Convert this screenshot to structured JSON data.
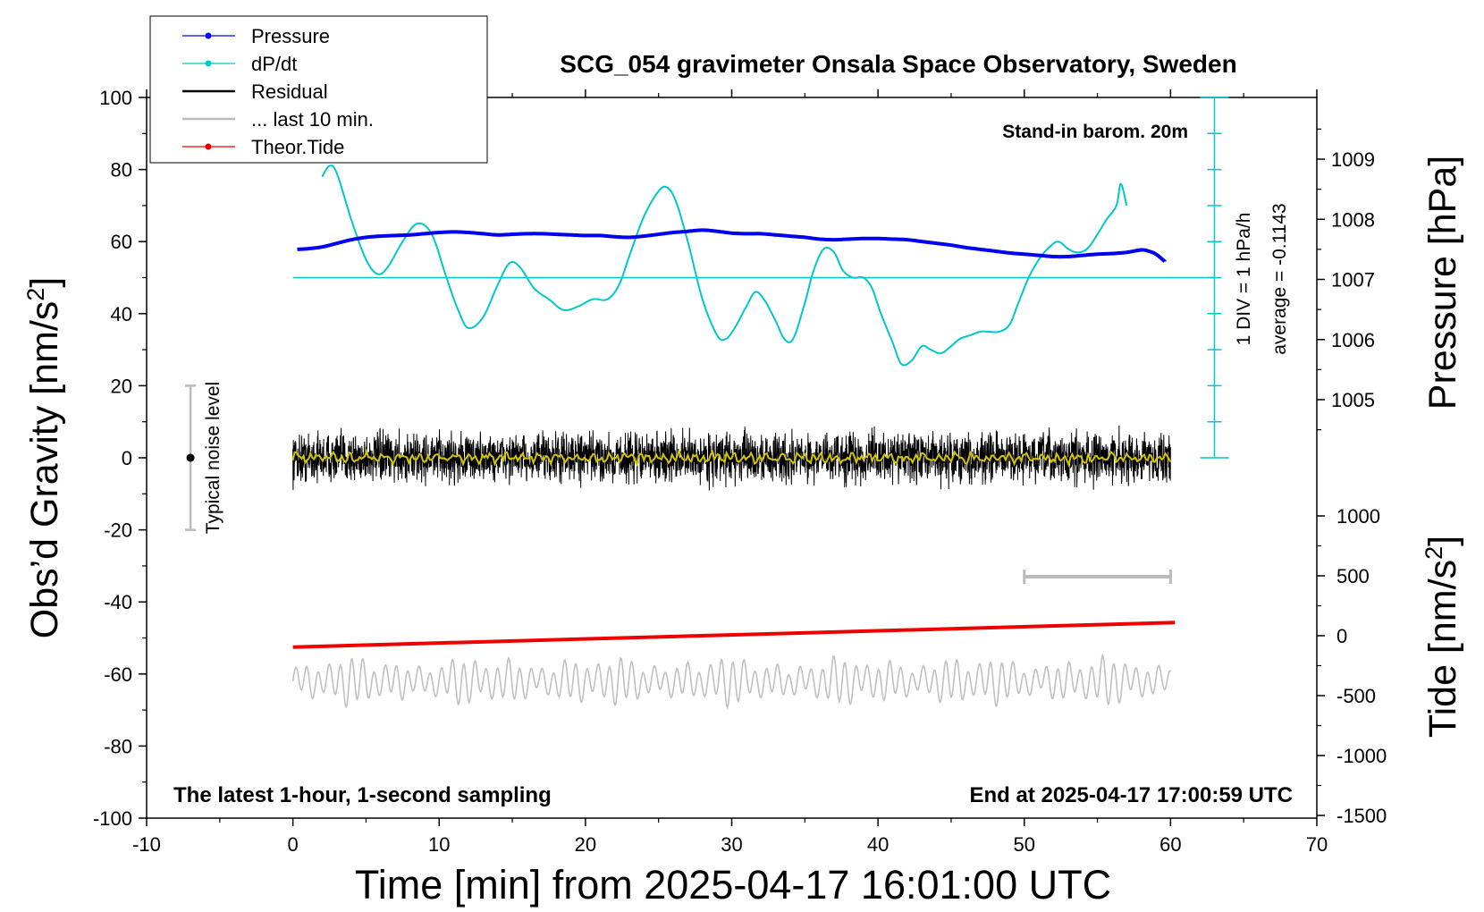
{
  "chart_data": {
    "type": "line",
    "title": "SCG_054 gravimeter Onsala Space Observatory, Sweden",
    "subtitle_right": "Stand-in barom. 20m",
    "footer_left": "The latest 1-hour, 1-second sampling",
    "footer_right": "End at 2025-04-17 17:00:59 UTC",
    "xlabel": "Time [min] from 2025-04-17 16:01:00 UTC",
    "ylabel_left": "Obs'd Gravity [nm/s²]",
    "ylabel_pressure": "Pressure [hPa]",
    "ylabel_tide_base": "Tide [nm/s",
    "ylabel_tide_sup": "2",
    "ylabel_tide_end": "]",
    "ylabel_left_base": "Obs’d Gravity [nm/s",
    "ylabel_left_sup": "2",
    "ylabel_left_end": "]",
    "xlim": [
      -10,
      70
    ],
    "ylim": [
      -100,
      100
    ],
    "xticks": [
      "-10",
      "0",
      "10",
      "20",
      "30",
      "40",
      "50",
      "60",
      "70"
    ],
    "yticks": [
      "100",
      "80",
      "60",
      "40",
      "20",
      "0",
      "-20",
      "-40",
      "-60",
      "-80",
      "-100"
    ],
    "pressure_axis": {
      "ticks": [
        "1009",
        "1008",
        "1007",
        "1006",
        "1005"
      ],
      "values": [
        1009,
        1008,
        1007,
        1006,
        1005
      ]
    },
    "tide_axis": {
      "ticks": [
        "1000",
        "500",
        "0",
        "-500",
        "-1000",
        "-1500"
      ],
      "values": [
        1000,
        500,
        0,
        -500,
        -1000,
        -1500
      ]
    },
    "dpdt_scale_label": "1 DIV = 1 hPa/h",
    "dpdt_average_label": "average = -0.1143",
    "noise_label": "Typical noise level",
    "legend": [
      {
        "label": "Pressure",
        "color": "#0000ee",
        "marker": true
      },
      {
        "label": "dP/dt",
        "color": "#00c8c8",
        "marker": true
      },
      {
        "label": "Residual",
        "color": "#000000",
        "marker": false
      },
      {
        "label": "... last 10 min.",
        "color": "#bbbbbb",
        "marker": false
      },
      {
        "label": "Theor.Tide",
        "color": "#ee0000",
        "marker": true
      }
    ],
    "series": [
      {
        "name": "Pressure",
        "axis": "pressure_hPa",
        "x": [
          0.3,
          1,
          2,
          3,
          4,
          5,
          6,
          7,
          8,
          9,
          10,
          11,
          12,
          13,
          14,
          15,
          16,
          17,
          18,
          19,
          20,
          21,
          22,
          23,
          24,
          25,
          26,
          27,
          28,
          29,
          30,
          31,
          32,
          33,
          34,
          35,
          36,
          37,
          38,
          39,
          40,
          41,
          42,
          43,
          44,
          45,
          46,
          47,
          48,
          49,
          50,
          51,
          52,
          53,
          54,
          55,
          56,
          57,
          58,
          58.5,
          59,
          59.6
        ],
        "values": [
          1007.5,
          1007.51,
          1007.54,
          1007.6,
          1007.66,
          1007.7,
          1007.72,
          1007.73,
          1007.74,
          1007.76,
          1007.78,
          1007.79,
          1007.78,
          1007.76,
          1007.74,
          1007.75,
          1007.76,
          1007.76,
          1007.75,
          1007.74,
          1007.73,
          1007.73,
          1007.71,
          1007.7,
          1007.72,
          1007.75,
          1007.78,
          1007.8,
          1007.82,
          1007.8,
          1007.77,
          1007.76,
          1007.76,
          1007.74,
          1007.72,
          1007.7,
          1007.67,
          1007.66,
          1007.67,
          1007.68,
          1007.68,
          1007.67,
          1007.66,
          1007.63,
          1007.6,
          1007.57,
          1007.53,
          1007.5,
          1007.47,
          1007.44,
          1007.42,
          1007.4,
          1007.38,
          1007.38,
          1007.4,
          1007.42,
          1007.43,
          1007.45,
          1007.49,
          1007.47,
          1007.42,
          1007.3
        ]
      },
      {
        "name": "dP/dt",
        "axis": "gravity_scale",
        "x": [
          2,
          2.5,
          3,
          4,
          5,
          5.8,
          6.5,
          7.5,
          8.5,
          9.5,
          10.5,
          11.3,
          12,
          13,
          14,
          14.8,
          15.5,
          16.5,
          17.5,
          18.5,
          19.5,
          20.5,
          21.5,
          22.3,
          23,
          24,
          25,
          25.6,
          26.2,
          27,
          28,
          29,
          29.6,
          30.2,
          31,
          31.6,
          32.2,
          33,
          33.6,
          34.2,
          35,
          35.6,
          36.3,
          37,
          37.6,
          38.3,
          39,
          39.6,
          40.2,
          41,
          41.6,
          42.3,
          43,
          43.6,
          44.3,
          45,
          45.6,
          46.3,
          47,
          47.6,
          48.3,
          49,
          49.6,
          50.3,
          51,
          51.6,
          52.3,
          53,
          53.6,
          54.3,
          55,
          55.6,
          56.3,
          56.6,
          57
        ],
        "values": [
          78,
          81,
          79,
          66,
          55,
          51,
          53,
          60,
          65,
          62,
          50,
          41,
          36,
          39,
          48,
          54,
          53,
          47,
          44,
          41,
          42,
          44,
          44,
          48,
          56,
          67,
          74,
          75,
          71,
          60,
          44,
          34,
          33,
          36,
          42,
          46,
          44,
          38,
          33,
          33,
          43,
          52,
          58,
          57,
          52,
          50,
          50,
          47,
          40,
          32,
          26,
          27,
          31,
          30,
          29,
          31,
          33,
          34,
          35,
          35,
          35,
          37,
          43,
          50,
          55,
          58,
          60,
          58,
          57,
          58,
          62,
          66,
          70,
          76,
          70
        ]
      },
      {
        "name": "Residual",
        "axis": "gravity",
        "x_range": [
          0,
          60
        ],
        "mean": 0,
        "typical_amplitude": 4,
        "peak_amplitude": 10
      },
      {
        "name": "Residual (smoothed)",
        "axis": "gravity",
        "x_range": [
          0,
          60
        ],
        "mean": 0,
        "typical_amplitude": 1.5,
        "color": "#d4c400"
      },
      {
        "name": "... last 10 min.",
        "axis": "gravity",
        "x_range": [
          0,
          60
        ],
        "mean": -62,
        "typical_amplitude": 4,
        "peak_amplitude": 9
      },
      {
        "name": "Theor.Tide",
        "axis": "tide_nm_s2",
        "x": [
          0,
          60.3
        ],
        "values": [
          -95,
          110
        ]
      }
    ],
    "dpdt_reference": {
      "value": 50,
      "x_range": [
        0,
        63
      ]
    },
    "dpdt_scale_bar": {
      "x": 63,
      "y_range": [
        0,
        100
      ],
      "tick_step": 10
    },
    "noise_bar": {
      "x": -7,
      "y_range": [
        -20,
        20
      ],
      "center": 0
    },
    "window_bar": {
      "x_range": [
        50,
        60
      ],
      "y": -33
    }
  }
}
